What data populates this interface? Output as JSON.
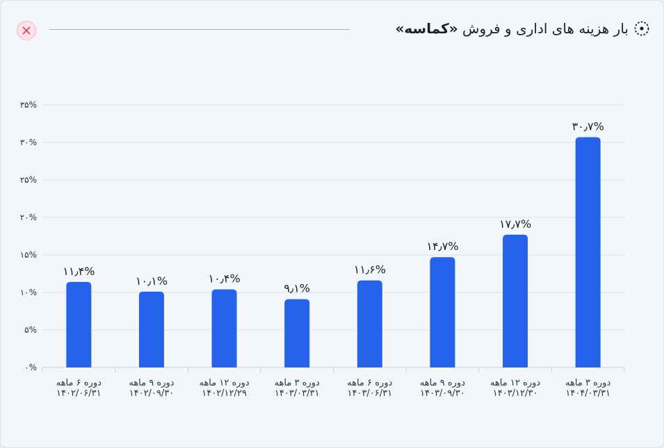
{
  "header": {
    "title_prefix": "بار هزینه های اداری و فروش",
    "title_ticker": "«کماسه»",
    "icon": "dotted-circle-icon",
    "close_icon": "close-icon"
  },
  "colors": {
    "bar": "#2563eb",
    "grid": "#dde2ea",
    "close": "#e0435a"
  },
  "chart_data": {
    "type": "bar",
    "grid": true,
    "ylim": [
      0,
      35
    ],
    "y_ticks": [
      0,
      5,
      10,
      15,
      20,
      25,
      30,
      35
    ],
    "y_tick_labels": [
      "۰%",
      "۵%",
      "۱۰%",
      "۱۵%",
      "۲۰%",
      "۲۵%",
      "۳۰%",
      "۳۵%"
    ],
    "categories": [
      {
        "line1": "دوره ۶ ماهه",
        "line2": "۱۴۰۲/۰۶/۳۱"
      },
      {
        "line1": "دوره ۹ ماهه",
        "line2": "۱۴۰۲/۰۹/۳۰"
      },
      {
        "line1": "دوره ۱۲ ماهه",
        "line2": "۱۴۰۲/۱۲/۲۹"
      },
      {
        "line1": "دوره ۳ ماهه",
        "line2": "۱۴۰۳/۰۳/۳۱"
      },
      {
        "line1": "دوره ۶ ماهه",
        "line2": "۱۴۰۳/۰۶/۳۱"
      },
      {
        "line1": "دوره ۹ ماهه",
        "line2": "۱۴۰۳/۰۹/۳۰"
      },
      {
        "line1": "دوره ۱۲ ماهه",
        "line2": "۱۴۰۳/۱۲/۳۰"
      },
      {
        "line1": "دوره ۳ ماهه",
        "line2": "۱۴۰۴/۰۳/۳۱"
      }
    ],
    "values": [
      11.4,
      10.1,
      10.4,
      9.1,
      11.6,
      14.7,
      17.7,
      30.7
    ],
    "value_labels": [
      "۱۱٫۴%",
      "۱۰٫۱%",
      "۱۰٫۴%",
      "۹٫۱%",
      "۱۱٫۶%",
      "۱۴٫۷%",
      "۱۷٫۷%",
      "۳۰٫۷%"
    ]
  }
}
